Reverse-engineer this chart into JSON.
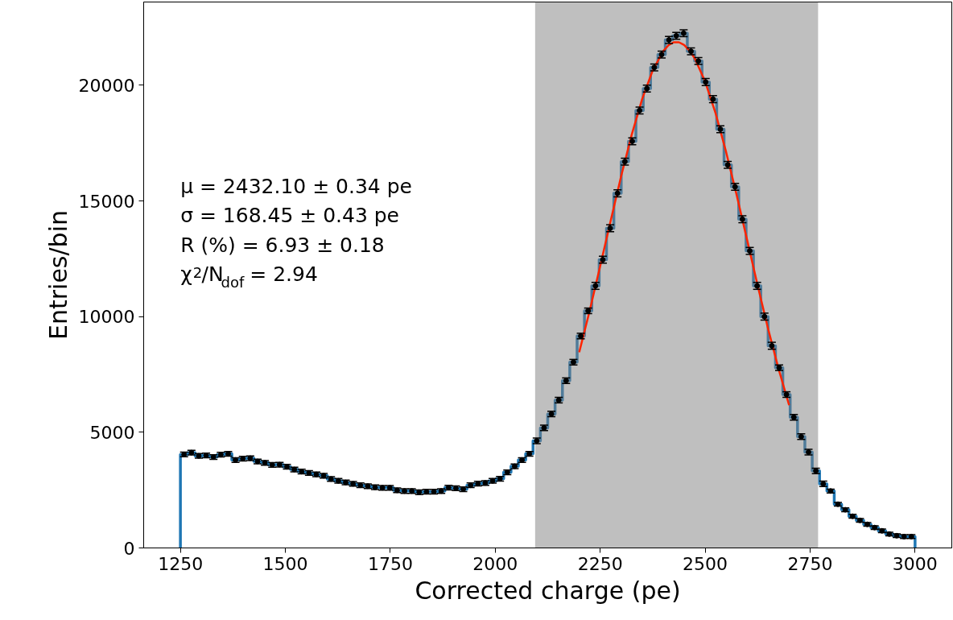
{
  "chart_data": {
    "type": "histogram",
    "xlabel": "Corrected charge (pe)",
    "ylabel": "Entries/bin",
    "xlim": [
      1162.5,
      3087.5
    ],
    "ylim": [
      0,
      23600
    ],
    "xticks": [
      1250,
      1500,
      1750,
      2000,
      2250,
      2500,
      2750,
      3000
    ],
    "yticks": [
      0,
      5000,
      10000,
      15000,
      20000
    ],
    "grid": false,
    "bins": [
      1250,
      1267.5,
      1285,
      1302.5,
      1320,
      1337.5,
      1355,
      1372.5,
      1390,
      1407.5,
      1425,
      1442.5,
      1460,
      1477.5,
      1495,
      1512.5,
      1530,
      1547.5,
      1565,
      1582.5,
      1600,
      1617.5,
      1635,
      1652.5,
      1670,
      1687.5,
      1705,
      1722.5,
      1740,
      1757.5,
      1775,
      1792.5,
      1810,
      1827.5,
      1845,
      1862.5,
      1880,
      1897.5,
      1915,
      1932.5,
      1950,
      1967.5,
      1985,
      2002.5,
      2020,
      2037.5,
      2055,
      2072.5,
      2090,
      2107.5,
      2125,
      2142.5,
      2160,
      2177.5,
      2195,
      2212.5,
      2230,
      2247.5,
      2265,
      2282.5,
      2300,
      2317.5,
      2335,
      2352.5,
      2370,
      2387.5,
      2405,
      2422.5,
      2440,
      2457.5,
      2475,
      2492.5,
      2510,
      2527.5,
      2545,
      2562.5,
      2580,
      2597.5,
      2615,
      2632.5,
      2650,
      2667.5,
      2685,
      2702.5,
      2720,
      2737.5,
      2755,
      2772.5,
      2790,
      2807.5,
      2825,
      2842.5,
      2860,
      2877.5,
      2895,
      2912.5,
      2930,
      2947.5,
      2965,
      2982.5,
      3000
    ],
    "values": [
      4040,
      4120,
      3980,
      4000,
      3930,
      4030,
      4070,
      3800,
      3860,
      3880,
      3740,
      3680,
      3590,
      3600,
      3510,
      3390,
      3300,
      3240,
      3180,
      3120,
      2980,
      2900,
      2830,
      2770,
      2710,
      2670,
      2620,
      2600,
      2600,
      2490,
      2460,
      2460,
      2410,
      2430,
      2430,
      2460,
      2610,
      2580,
      2540,
      2710,
      2780,
      2810,
      2900,
      2990,
      3270,
      3530,
      3800,
      4070,
      4630,
      5190,
      5790,
      6390,
      7230,
      8030,
      9160,
      10250,
      11330,
      12460,
      13820,
      15330,
      16700,
      17580,
      18910,
      19860,
      20770,
      21330,
      21960,
      22140,
      22250,
      21470,
      21050,
      20140,
      19400,
      18100,
      16560,
      15610,
      14210,
      12840,
      11330,
      10000,
      8740,
      7790,
      6630,
      5650,
      4810,
      4140,
      3330,
      2770,
      2460,
      1890,
      1650,
      1370,
      1190,
      1020,
      880,
      740,
      600,
      530,
      490,
      490
    ],
    "color": "#1f77b4",
    "series": [
      {
        "type": "scatter",
        "color": "#000000",
        "marker": "circle",
        "x": [
          1258.75,
          1276.25,
          1293.75,
          1311.25,
          1328.75,
          1346.25,
          1363.75,
          1381.25,
          1398.75,
          1416.25,
          1433.75,
          1451.25,
          1468.75,
          1486.25,
          1503.75,
          1521.25,
          1538.75,
          1556.25,
          1573.75,
          1591.25,
          1608.75,
          1626.25,
          1643.75,
          1661.25,
          1678.75,
          1696.25,
          1713.75,
          1731.25,
          1748.75,
          1766.25,
          1783.75,
          1801.25,
          1818.75,
          1836.25,
          1853.75,
          1871.25,
          1888.75,
          1906.25,
          1923.75,
          1941.25,
          1958.75,
          1976.25,
          1993.75,
          2011.25,
          2028.75,
          2046.25,
          2063.75,
          2081.25,
          2098.75,
          2116.25,
          2133.75,
          2151.25,
          2168.75,
          2186.25,
          2203.75,
          2221.25,
          2238.75,
          2256.25,
          2273.75,
          2291.25,
          2308.75,
          2326.25,
          2343.75,
          2361.25,
          2378.75,
          2396.25,
          2413.75,
          2431.25,
          2448.75,
          2466.25,
          2483.75,
          2501.25,
          2518.75,
          2536.25,
          2553.75,
          2571.25,
          2588.75,
          2606.25,
          2623.75,
          2641.25,
          2658.75,
          2676.25,
          2693.75,
          2711.25,
          2728.75,
          2746.25,
          2763.75,
          2781.25,
          2798.75,
          2816.25,
          2833.75,
          2851.25,
          2868.75,
          2886.25,
          2903.75,
          2921.25,
          2938.75,
          2956.25,
          2973.75,
          2991.25
        ],
        "values": [
          4040,
          4120,
          3980,
          4000,
          3930,
          4030,
          4070,
          3800,
          3860,
          3880,
          3740,
          3680,
          3590,
          3600,
          3510,
          3390,
          3300,
          3240,
          3180,
          3120,
          2980,
          2900,
          2830,
          2770,
          2710,
          2670,
          2620,
          2600,
          2600,
          2490,
          2460,
          2460,
          2410,
          2430,
          2430,
          2460,
          2610,
          2580,
          2540,
          2710,
          2780,
          2810,
          2900,
          2990,
          3270,
          3530,
          3800,
          4070,
          4630,
          5190,
          5790,
          6390,
          7230,
          8030,
          9160,
          10250,
          11330,
          12460,
          13820,
          15330,
          16700,
          17580,
          18910,
          19860,
          20770,
          21330,
          21960,
          22140,
          22250,
          21470,
          21050,
          20140,
          19400,
          18100,
          16560,
          15610,
          14210,
          12840,
          11330,
          10000,
          8740,
          7790,
          6630,
          5650,
          4810,
          4140,
          3330,
          2770,
          2460,
          1890,
          1650,
          1370,
          1190,
          1020,
          880,
          740,
          600,
          530,
          490,
          490
        ],
        "errors": [
          100,
          100,
          100,
          100,
          100,
          100,
          100,
          100,
          100,
          100,
          100,
          100,
          100,
          100,
          100,
          100,
          100,
          100,
          100,
          100,
          100,
          100,
          100,
          100,
          100,
          100,
          100,
          100,
          100,
          100,
          100,
          100,
          100,
          100,
          100,
          100,
          100,
          100,
          100,
          100,
          100,
          100,
          100,
          100,
          100,
          100,
          100,
          100,
          120,
          120,
          120,
          120,
          120,
          120,
          120,
          120,
          150,
          150,
          150,
          150,
          150,
          150,
          150,
          150,
          150,
          150,
          150,
          150,
          150,
          150,
          150,
          150,
          150,
          150,
          150,
          150,
          150,
          150,
          150,
          150,
          150,
          120,
          120,
          120,
          120,
          120,
          120,
          120,
          80,
          80,
          80,
          80,
          80,
          80,
          80,
          80,
          80,
          80,
          80,
          80
        ]
      },
      {
        "type": "line",
        "color": "#ff2400",
        "x": [
          2200,
          2225,
          2250,
          2275,
          2300,
          2325,
          2350,
          2375,
          2400,
          2412.5,
          2425,
          2437.5,
          2450,
          2462.5,
          2475,
          2500,
          2525,
          2550,
          2575,
          2600,
          2625,
          2650,
          2675,
          2700
        ],
        "values": [
          8460,
          10260,
          12190,
          14150,
          16080,
          17860,
          19410,
          20640,
          21470,
          21730,
          21860,
          21860,
          21740,
          21500,
          21170,
          20160,
          18780,
          17110,
          15260,
          13310,
          11350,
          9470,
          7730,
          6170
        ]
      }
    ],
    "bands": [
      {
        "axis": "x",
        "from": 2095,
        "to": 2769,
        "color": "#7f7f7f"
      }
    ],
    "annotations": [
      "μ = 2432.10 ± 0.34 pe",
      "σ = 168.45 ± 0.43 pe",
      "R (%) = 6.93 ± 0.18",
      "χ$^{2}$/N$_{dof}$ = 2.94"
    ]
  }
}
